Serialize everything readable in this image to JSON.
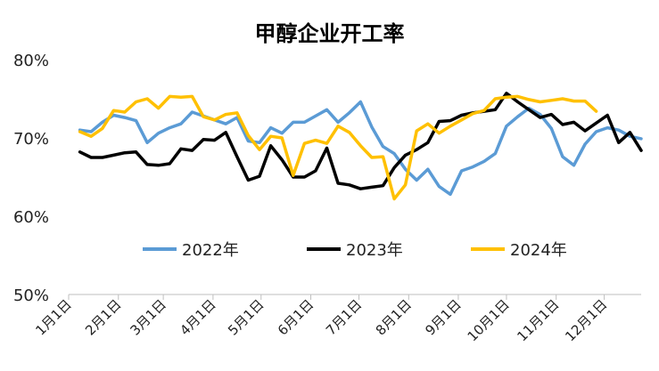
{
  "chart_data": {
    "type": "line",
    "title": "甲醇企业开工率",
    "xlabel": "",
    "ylabel": "",
    "ylim": [
      50,
      80
    ],
    "yticks": [
      "50%",
      "60%",
      "70%",
      "80%"
    ],
    "yticks_values": [
      50,
      60,
      70,
      80
    ],
    "x_unit": "week",
    "x_range": [
      1,
      52
    ],
    "xticks": [
      "1月1日",
      "2月1日",
      "3月1日",
      "4月1日",
      "5月1日",
      "6月1日",
      "7月1日",
      "8月1日",
      "9月1日",
      "10月1日",
      "11月1日",
      "12月1日"
    ],
    "xticks_week": [
      1,
      5.43,
      9.43,
      13.86,
      18.14,
      22.57,
      26.86,
      31.29,
      35.71,
      40,
      44.43,
      48.71
    ],
    "grid": false,
    "legend_position": "bottom-center",
    "series": [
      {
        "name": "2022年",
        "color": "#5B9BD5",
        "x": [
          2,
          3,
          4,
          5,
          6,
          7,
          8,
          9,
          10,
          11,
          12,
          13,
          14,
          15,
          16,
          17,
          18,
          19,
          20,
          21,
          22,
          23,
          24,
          25,
          26,
          27,
          28,
          29,
          30,
          31,
          32,
          33,
          34,
          35,
          36,
          37,
          38,
          39,
          40,
          41,
          42,
          43,
          44,
          45,
          46,
          47,
          48,
          49,
          50,
          51,
          52
        ],
        "values": [
          71.0,
          70.8,
          72.0,
          72.9,
          72.6,
          72.2,
          69.4,
          70.6,
          71.3,
          71.8,
          73.3,
          72.8,
          72.3,
          71.8,
          72.6,
          69.6,
          69.4,
          71.3,
          70.6,
          72.0,
          72.0,
          72.8,
          73.6,
          72.0,
          73.2,
          74.6,
          71.4,
          68.9,
          68.0,
          66.0,
          64.6,
          66.0,
          63.8,
          62.8,
          65.8,
          66.3,
          67.0,
          68.0,
          71.5,
          72.7,
          73.8,
          73.0,
          71.2,
          67.6,
          66.5,
          69.2,
          70.8,
          71.3,
          71.0,
          70.2,
          69.9
        ]
      },
      {
        "name": "2023年",
        "color": "#000000",
        "x": [
          2,
          3,
          4,
          5,
          6,
          7,
          8,
          9,
          10,
          11,
          12,
          13,
          14,
          15,
          16,
          17,
          18,
          19,
          20,
          21,
          22,
          23,
          24,
          25,
          26,
          27,
          28,
          29,
          30,
          31,
          32,
          33,
          34,
          35,
          36,
          37,
          38,
          39,
          40,
          41,
          42,
          43,
          44,
          45,
          46,
          47,
          48,
          49,
          50,
          51,
          52
        ],
        "values": [
          68.2,
          67.5,
          67.5,
          67.8,
          68.1,
          68.2,
          66.6,
          66.5,
          66.7,
          68.6,
          68.4,
          69.8,
          69.7,
          70.7,
          67.6,
          64.6,
          65.1,
          69.0,
          67.2,
          65.0,
          65.0,
          65.8,
          68.7,
          64.2,
          64.0,
          63.5,
          63.7,
          63.9,
          66.2,
          67.8,
          68.5,
          69.4,
          72.1,
          72.2,
          72.9,
          73.2,
          73.4,
          73.6,
          75.7,
          74.6,
          73.6,
          72.6,
          73.0,
          71.7,
          72.0,
          70.9,
          71.9,
          72.9,
          69.4,
          70.7,
          68.4
        ]
      },
      {
        "name": "2024年",
        "color": "#FFC000",
        "x": [
          2,
          3,
          4,
          5,
          6,
          7,
          8,
          9,
          10,
          11,
          12,
          13,
          14,
          15,
          16,
          17,
          18,
          19,
          20,
          21,
          22,
          23,
          24,
          25,
          26,
          27,
          28,
          29,
          30,
          31,
          32,
          33,
          34,
          35,
          36,
          37,
          38,
          39,
          40,
          41,
          42,
          43,
          44,
          45,
          46,
          47,
          48
        ],
        "values": [
          70.8,
          70.2,
          71.2,
          73.5,
          73.3,
          74.6,
          75.0,
          73.8,
          75.3,
          75.2,
          75.3,
          72.7,
          72.3,
          73.0,
          73.2,
          70.3,
          68.5,
          70.2,
          70.0,
          65.2,
          69.3,
          69.7,
          69.3,
          71.5,
          70.7,
          69.0,
          67.5,
          67.6,
          62.2,
          64.0,
          70.9,
          71.8,
          70.6,
          71.5,
          72.3,
          73.1,
          73.5,
          75.0,
          75.2,
          75.3,
          74.9,
          74.6,
          74.8,
          75.0,
          74.7,
          74.7,
          73.4
        ]
      }
    ]
  }
}
